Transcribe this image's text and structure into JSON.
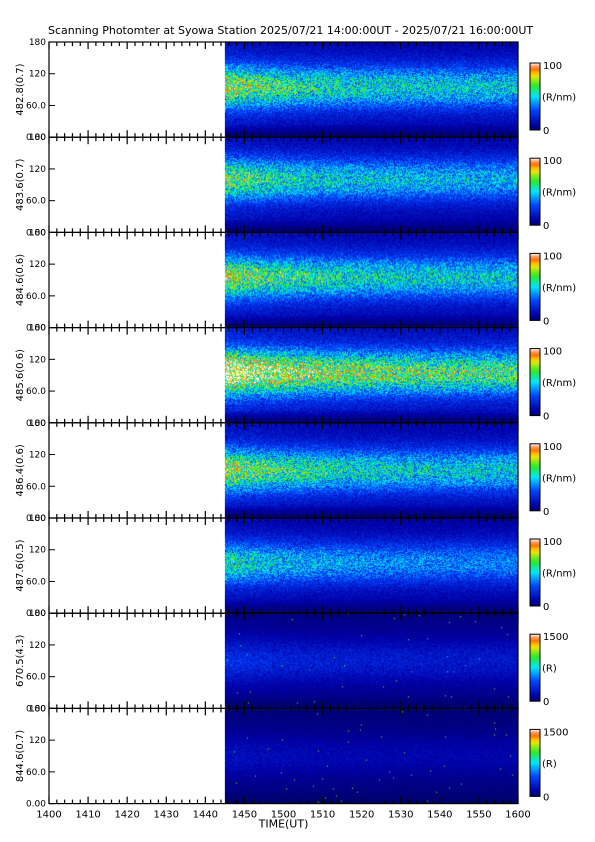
{
  "title": "Scanning Photomter at Syowa Station 2025/07/21 14:00:00UT - 2025/07/21 16:00:00UT",
  "chart_data": {
    "type": "heatmap",
    "xlabel": "TIME(UT)",
    "x_ticks": [
      "1400",
      "1410",
      "1420",
      "1430",
      "1440",
      "1450",
      "1500",
      "1510",
      "1520",
      "1530",
      "1540",
      "1550",
      "1600"
    ],
    "xlim": [
      "1400",
      "1600"
    ],
    "data_start": "1445",
    "y_ticks": [
      "0.00",
      "60.0",
      "120",
      "180"
    ],
    "ylim": [
      0,
      180
    ],
    "panels": [
      {
        "ylabel": "482.8(0.7)",
        "cbar_unit": "(R/nm)",
        "cbar_max": "100",
        "cbar_min": "0",
        "peak_scan": 95,
        "intensity": 0.55
      },
      {
        "ylabel": "483.6(0.7)",
        "cbar_unit": "(R/nm)",
        "cbar_max": "100",
        "cbar_min": "0",
        "peak_scan": 100,
        "intensity": 0.5
      },
      {
        "ylabel": "484.6(0.6)",
        "cbar_unit": "(R/nm)",
        "cbar_max": "100",
        "cbar_min": "0",
        "peak_scan": 95,
        "intensity": 0.55
      },
      {
        "ylabel": "485.6(0.6)",
        "cbar_unit": "(R/nm)",
        "cbar_max": "100",
        "cbar_min": "0",
        "peak_scan": 95,
        "intensity": 0.72
      },
      {
        "ylabel": "486.4(0.6)",
        "cbar_unit": "(R/nm)",
        "cbar_max": "100",
        "cbar_min": "0",
        "peak_scan": 90,
        "intensity": 0.55
      },
      {
        "ylabel": "487.6(0.5)",
        "cbar_unit": "(R/nm)",
        "cbar_max": "100",
        "cbar_min": "0",
        "peak_scan": 95,
        "intensity": 0.42
      },
      {
        "ylabel": "670.5(4.3)",
        "cbar_unit": "(R)",
        "cbar_max": "1500",
        "cbar_min": "0",
        "peak_scan": 90,
        "intensity": 0.18
      },
      {
        "ylabel": "844.6(0.7)",
        "cbar_unit": "(R)",
        "cbar_max": "1500",
        "cbar_min": "0",
        "peak_scan": 90,
        "intensity": 0.1
      }
    ]
  }
}
